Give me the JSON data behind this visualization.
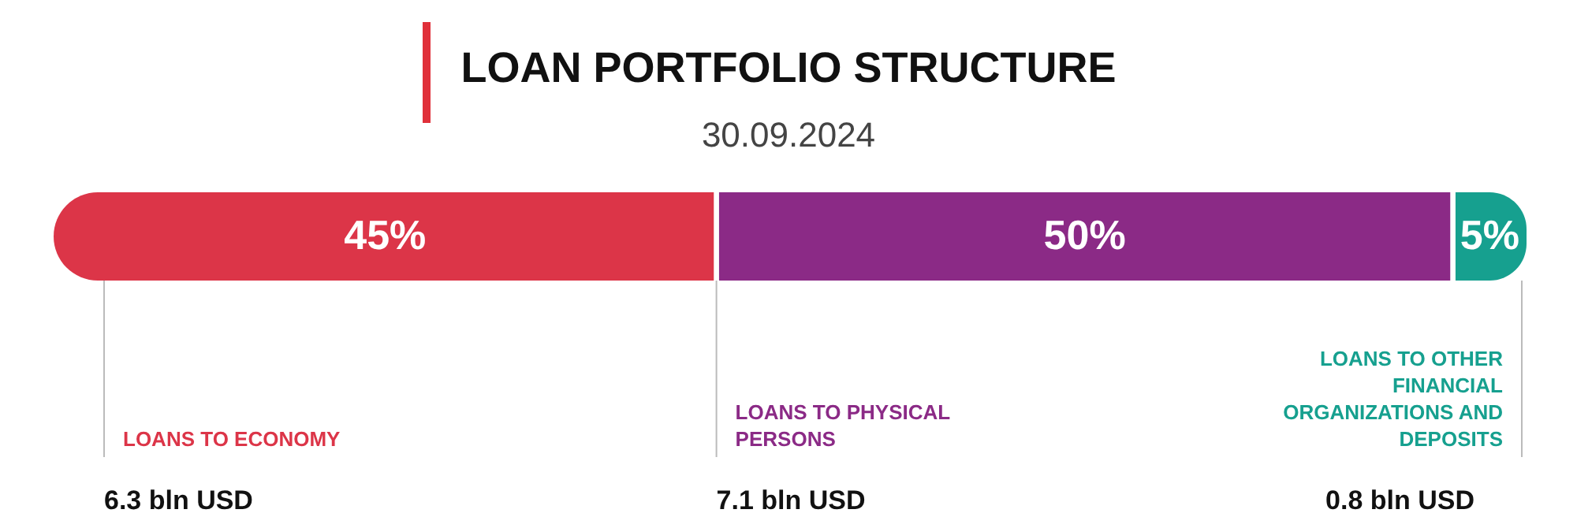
{
  "chart_data": {
    "type": "bar",
    "orientation": "horizontal",
    "stacked": true,
    "title": "LOAN PORTFOLIO STRUCTURE",
    "subtitle": "30.09.2024",
    "categories": [
      null
    ],
    "series": [
      {
        "name": "LOANS TO ECONOMY",
        "color": "#dc3548",
        "values": [
          45
        ],
        "value_labels": [
          "45%"
        ]
      },
      {
        "name": "LOANS TO PHYSICAL PERSONS",
        "color": "#8b2a86",
        "values": [
          50
        ],
        "value_labels": [
          "50%"
        ]
      },
      {
        "name": "LOANS TO OTHER FINANCIAL ORGANIZATIONS AND DEPOSITS",
        "color": "#16a08f",
        "values": [
          5
        ],
        "value_labels": [
          "5%"
        ]
      }
    ],
    "annotations": [
      "6.3 bln USD",
      "7.1 bln USD",
      "0.8 bln USD"
    ],
    "xlim": [
      0,
      100
    ]
  }
}
